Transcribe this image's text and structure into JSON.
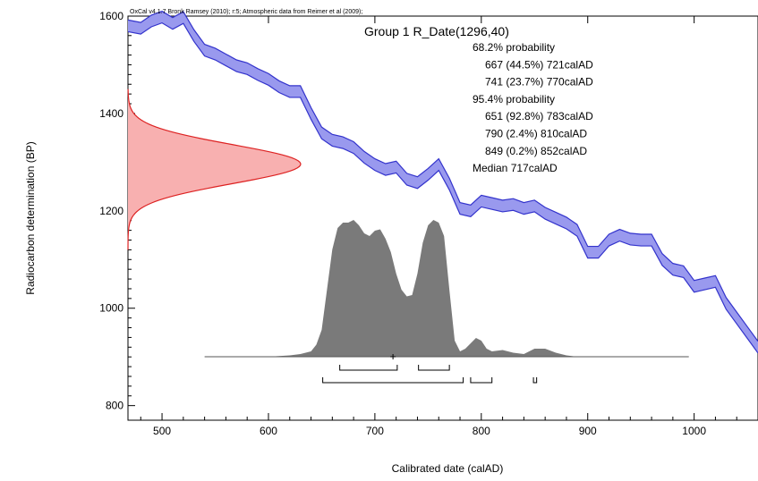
{
  "chart_data": {
    "type": "area",
    "credit": "OxCal v4.1.7 Bronk Ramsey (2010); r:5; Atmospheric data from Reimer et al (2009);",
    "title": "Group 1 R_Date(1296,40)",
    "xlabel": "Calibrated date (calAD)",
    "ylabel": "Radiocarbon determination (BP)",
    "xlim": [
      468,
      1060
    ],
    "ylim": [
      770,
      1600
    ],
    "xticks": [
      500,
      600,
      700,
      800,
      900,
      1000
    ],
    "yticks": [
      800,
      1000,
      1200,
      1400,
      1600
    ],
    "stats": [
      {
        "text": "68.2% probability",
        "indent": false
      },
      {
        "text": "667 (44.5%) 721calAD",
        "indent": true
      },
      {
        "text": "741 (23.7%) 770calAD",
        "indent": true
      },
      {
        "text": "95.4% probability",
        "indent": false
      },
      {
        "text": "651 (92.8%) 783calAD",
        "indent": true
      },
      {
        "text": "790 (2.4%) 810calAD",
        "indent": true
      },
      {
        "text": "849 (0.2%) 852calAD",
        "indent": true
      },
      {
        "text": "Median 717calAD",
        "indent": false
      }
    ],
    "calibration_curve": {
      "color": "#3333cc",
      "fill": "#9999ee",
      "x": [
        468,
        480,
        490,
        500,
        510,
        520,
        530,
        540,
        550,
        560,
        570,
        580,
        590,
        600,
        610,
        620,
        630,
        640,
        650,
        660,
        670,
        680,
        690,
        700,
        710,
        720,
        730,
        740,
        750,
        760,
        770,
        780,
        790,
        800,
        810,
        820,
        830,
        840,
        850,
        860,
        870,
        880,
        890,
        900,
        910,
        920,
        930,
        940,
        950,
        960,
        970,
        980,
        990,
        1000,
        1010,
        1020,
        1030,
        1040,
        1050,
        1060
      ],
      "y": [
        1580,
        1575,
        1590,
        1598,
        1585,
        1597,
        1560,
        1530,
        1522,
        1510,
        1498,
        1492,
        1480,
        1470,
        1455,
        1445,
        1445,
        1400,
        1360,
        1345,
        1340,
        1330,
        1310,
        1295,
        1285,
        1290,
        1265,
        1258,
        1275,
        1295,
        1255,
        1205,
        1200,
        1220,
        1215,
        1210,
        1213,
        1205,
        1210,
        1195,
        1185,
        1175,
        1160,
        1115,
        1115,
        1140,
        1150,
        1142,
        1140,
        1140,
        1100,
        1080,
        1075,
        1045,
        1050,
        1055,
        1010,
        980,
        950,
        920
      ],
      "halfwidth": 12
    },
    "radiocarbon_distribution": {
      "color": "#dd2222",
      "fill": "#f8b0b0",
      "mean": 1296,
      "sigma": 40
    },
    "calibrated_distribution": {
      "fill": "#7a7a7a",
      "x": [
        540,
        600,
        620,
        630,
        640,
        645,
        650,
        655,
        660,
        665,
        670,
        675,
        680,
        685,
        690,
        695,
        700,
        705,
        710,
        715,
        720,
        725,
        730,
        735,
        740,
        745,
        750,
        755,
        760,
        765,
        770,
        775,
        780,
        785,
        790,
        795,
        800,
        805,
        810,
        820,
        830,
        840,
        850,
        860,
        870,
        880,
        890,
        995
      ],
      "y": [
        0,
        0,
        0.01,
        0.02,
        0.04,
        0.09,
        0.2,
        0.5,
        0.8,
        0.96,
        1.0,
        1.0,
        1.02,
        0.98,
        0.92,
        0.9,
        0.94,
        0.95,
        0.88,
        0.78,
        0.62,
        0.5,
        0.45,
        0.46,
        0.62,
        0.85,
        0.98,
        1.02,
        1.0,
        0.9,
        0.5,
        0.12,
        0.04,
        0.06,
        0.1,
        0.14,
        0.12,
        0.06,
        0.04,
        0.05,
        0.03,
        0.02,
        0.06,
        0.06,
        0.03,
        0.01,
        0,
        0
      ]
    },
    "median_marker": 717,
    "ranges_68": [
      [
        667,
        721
      ],
      [
        741,
        770
      ]
    ],
    "ranges_95": [
      [
        651,
        783
      ],
      [
        790,
        810
      ],
      [
        849,
        852
      ]
    ]
  }
}
